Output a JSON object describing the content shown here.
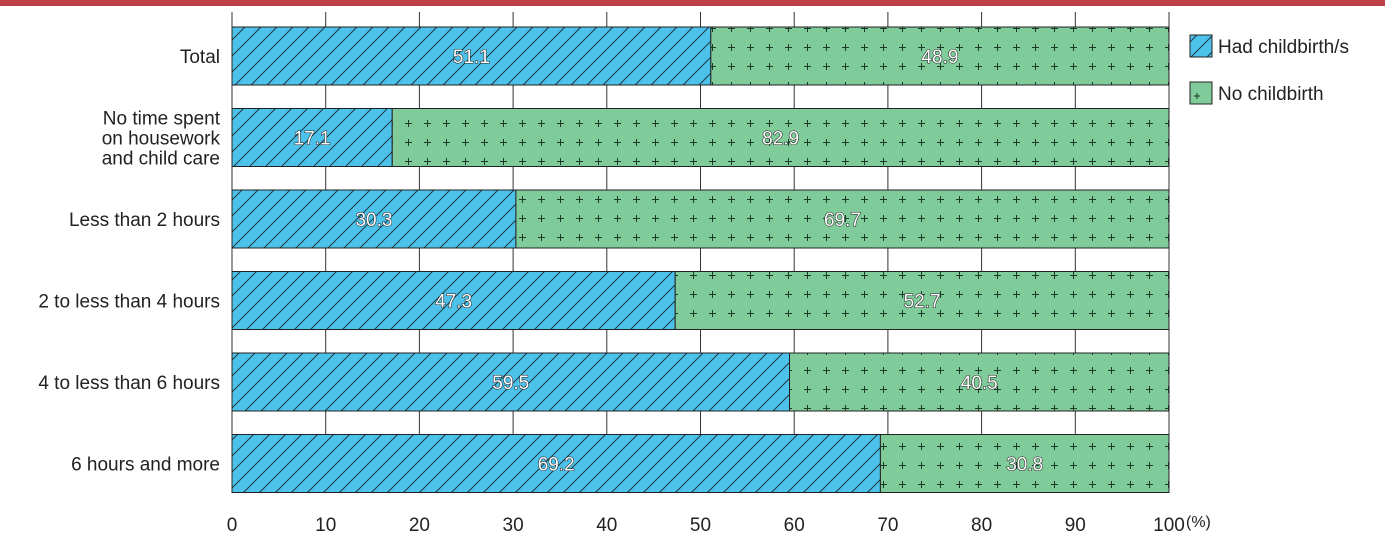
{
  "chart_data": {
    "type": "bar",
    "orientation": "horizontal",
    "stacked": true,
    "categories": [
      [
        "Total"
      ],
      [
        "No time spent",
        "on housework",
        "and child care"
      ],
      [
        "Less than 2 hours"
      ],
      [
        "2 to less than 4 hours"
      ],
      [
        "4 to less than 6 hours"
      ],
      [
        "6 hours and more"
      ]
    ],
    "series": [
      {
        "name": "Had childbirth/s",
        "values": [
          51.1,
          17.1,
          30.3,
          47.3,
          59.5,
          69.2
        ],
        "value_labels": [
          "51.1",
          "17.1",
          "30.3",
          "47.3",
          "59.5",
          "69.2"
        ],
        "color": "#4cc1ea",
        "pattern": "diagonal-hatch"
      },
      {
        "name": "No childbirth",
        "values": [
          48.9,
          82.9,
          69.7,
          52.7,
          40.5,
          30.8
        ],
        "value_labels": [
          "48.9",
          "82.9",
          "69.7",
          "52.7",
          "40.5",
          "30.8"
        ],
        "color": "#7fcb99",
        "pattern": "plus-dots"
      }
    ],
    "xlim": [
      0,
      100
    ],
    "xticks": [
      "0",
      "10",
      "20",
      "30",
      "40",
      "50",
      "60",
      "70",
      "80",
      "90",
      "100"
    ],
    "unit_label": "(%)",
    "grid": "vertical",
    "legend_position": "right"
  },
  "colors": {
    "top_bar": "#c0404a",
    "grid": "#333333"
  }
}
